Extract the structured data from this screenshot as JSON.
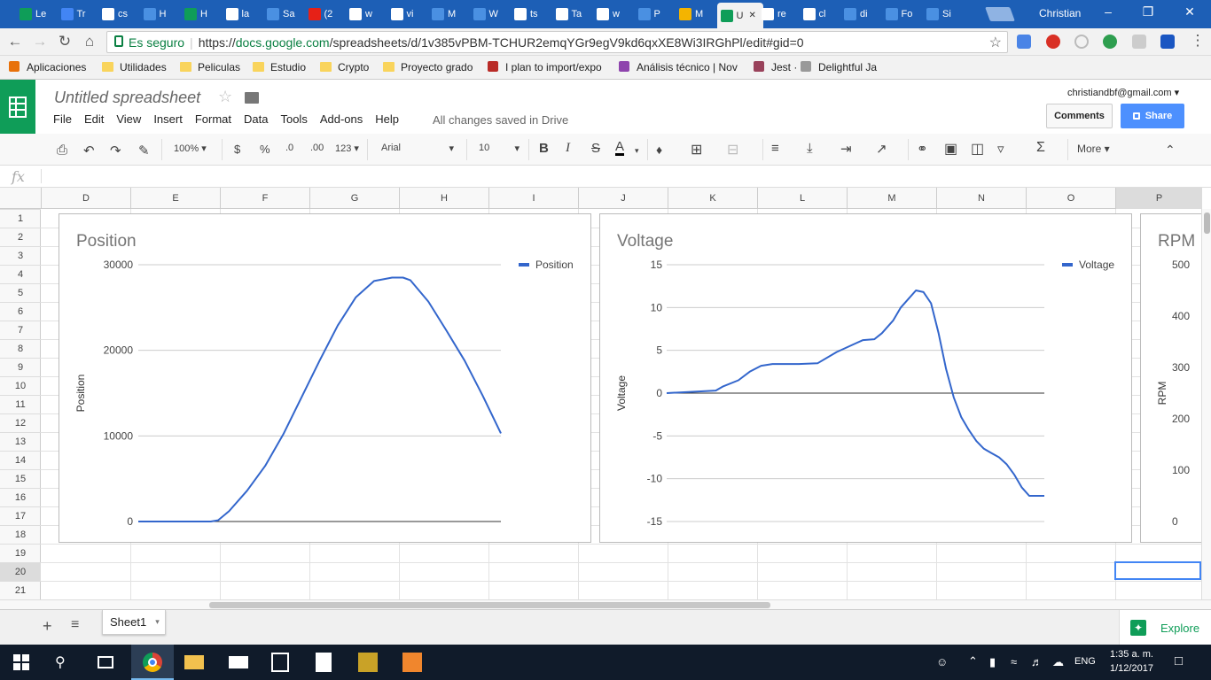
{
  "browser": {
    "tabs": [
      {
        "label": "Le",
        "icon": "sheets-icon"
      },
      {
        "label": "Tr",
        "icon": "docs-icon"
      },
      {
        "label": "cs",
        "icon": "google-icon"
      },
      {
        "label": "H",
        "icon": "bird-icon"
      },
      {
        "label": "H",
        "icon": "sheets-icon"
      },
      {
        "label": "la",
        "icon": "google-icon"
      },
      {
        "label": "Sa",
        "icon": "bird-icon"
      },
      {
        "label": "(2",
        "icon": "youtube-icon"
      },
      {
        "label": "w",
        "icon": "google-icon"
      },
      {
        "label": "vi",
        "icon": "google-icon"
      },
      {
        "label": "M",
        "icon": "bird-icon"
      },
      {
        "label": "W",
        "icon": "bird-icon"
      },
      {
        "label": "ts",
        "icon": "google-icon"
      },
      {
        "label": "Ta",
        "icon": "wikipedia-icon"
      },
      {
        "label": "w",
        "icon": "google-icon"
      },
      {
        "label": "P",
        "icon": "bird-icon"
      },
      {
        "label": "M",
        "icon": "drive-icon"
      },
      {
        "label": "U",
        "icon": "sheets-icon"
      },
      {
        "label": "re",
        "icon": "google-icon"
      },
      {
        "label": "cl",
        "icon": "google-icon"
      },
      {
        "label": "di",
        "icon": "bird-icon"
      },
      {
        "label": "Fo",
        "icon": "bird-icon"
      },
      {
        "label": "Si",
        "icon": "bird-icon"
      }
    ],
    "active_tab_index": 17,
    "user": "Christian",
    "secure_label": "Es seguro",
    "url_scheme": "https://",
    "url_host": "docs.google.com",
    "url_path": "/spreadsheets/d/1v385vPBM-TCHUR2emqYGr9egV9kd6qxXE8Wi3IRGhPl/edit#gid=0"
  },
  "bookmarks": [
    {
      "label": "Aplicaciones",
      "icon": "apps-grid-icon"
    },
    {
      "label": "Utilidades",
      "icon": "folder-icon"
    },
    {
      "label": "Peliculas",
      "icon": "folder-icon"
    },
    {
      "label": "Estudio",
      "icon": "folder-icon"
    },
    {
      "label": "Crypto",
      "icon": "folder-icon"
    },
    {
      "label": "Proyecto grado",
      "icon": "folder-icon"
    },
    {
      "label": "I plan to import/expo",
      "icon": "quora-icon"
    },
    {
      "label": "Análisis técnico | Nov",
      "icon": "circle-icon"
    },
    {
      "label": "Jest ·",
      "icon": "jest-icon"
    },
    {
      "label": "Delightful Ja",
      "icon": "page-icon"
    }
  ],
  "app": {
    "title": "Untitled spreadsheet",
    "menu": [
      "File",
      "Edit",
      "View",
      "Insert",
      "Format",
      "Data",
      "Tools",
      "Add-ons",
      "Help"
    ],
    "save_status": "All changes saved in Drive",
    "account": "christiandbf@gmail.com",
    "comments_label": "Comments",
    "share_label": "Share"
  },
  "toolbar": {
    "zoom": "100%",
    "currency": "$",
    "percent": "%",
    "dec_decrease": ".0",
    "dec_increase": ".00",
    "more_formats": "123",
    "font": "Arial",
    "font_size": "10",
    "bold": "B",
    "italic": "I",
    "strike": "S",
    "text_color": "A",
    "more": "More"
  },
  "formula_bar": {
    "label": "fx",
    "value": ""
  },
  "grid": {
    "columns": [
      "D",
      "E",
      "F",
      "G",
      "H",
      "I",
      "J",
      "K",
      "L",
      "M",
      "N",
      "O",
      "P"
    ],
    "rows": [
      "1",
      "2",
      "3",
      "4",
      "5",
      "6",
      "7",
      "8",
      "9",
      "10",
      "11",
      "12",
      "13",
      "14",
      "15",
      "16",
      "17",
      "18",
      "19",
      "20",
      "21"
    ],
    "selected_cell": "P20"
  },
  "chart_data": [
    {
      "type": "line",
      "title": "Position",
      "ylabel": "Position",
      "xlabel": "",
      "ylim": [
        0,
        30000
      ],
      "yticks": [
        "30000",
        "20000",
        "10000",
        "0"
      ],
      "legend": "top-right",
      "series": [
        {
          "name": "Position",
          "color": "#3366cc",
          "x": [
            0,
            5,
            10,
            15,
            20,
            22,
            25,
            30,
            35,
            40,
            45,
            50,
            55,
            60,
            65,
            70,
            73,
            75,
            80,
            85,
            90,
            95,
            100
          ],
          "y": [
            0,
            0,
            0,
            0,
            0,
            150,
            1200,
            3600,
            6500,
            10200,
            14500,
            18800,
            22900,
            26200,
            28100,
            28500,
            28500,
            28200,
            25700,
            22300,
            18800,
            14700,
            10300
          ]
        }
      ]
    },
    {
      "type": "line",
      "title": "Voltage",
      "ylabel": "Voltage",
      "xlabel": "",
      "ylim": [
        -15,
        15
      ],
      "yticks": [
        "15",
        "10",
        "5",
        "0",
        "-5",
        "-10",
        "-15"
      ],
      "legend": "top-right",
      "series": [
        {
          "name": "Voltage",
          "color": "#3366cc",
          "x": [
            0,
            13,
            15,
            19,
            22,
            25,
            28,
            31,
            35,
            40,
            45,
            50,
            52,
            55,
            57,
            60,
            62,
            64,
            66,
            68,
            70,
            72,
            74,
            76,
            78,
            80,
            82,
            84,
            86,
            88,
            90,
            92,
            94,
            96,
            98,
            100
          ],
          "y": [
            0,
            0.3,
            0.8,
            1.5,
            2.5,
            3.2,
            3.4,
            3.4,
            3.4,
            3.5,
            4.8,
            5.8,
            6.2,
            6.3,
            7.0,
            8.5,
            10.0,
            11.0,
            12.0,
            11.8,
            10.5,
            7.0,
            2.8,
            -0.5,
            -2.8,
            -4.3,
            -5.6,
            -6.5,
            -7.0,
            -7.5,
            -8.3,
            -9.5,
            -11.0,
            -12.0,
            -12.0,
            -12.0
          ]
        }
      ]
    },
    {
      "type": "line",
      "title": "RPM",
      "ylabel": "RPM",
      "xlabel": "",
      "yticks": [
        "500",
        "400",
        "300",
        "200",
        "100",
        "0"
      ],
      "legend": "top-right",
      "series": []
    }
  ],
  "sheets": {
    "tabs": [
      "Sheet1"
    ],
    "explore_label": "Explore"
  },
  "taskbar": {
    "time": "1:35 a. m.",
    "date": "1/12/2017",
    "language": "ENG"
  },
  "colors": {
    "sheets_green": "#0f9d58",
    "share_blue": "#4d90fe",
    "series_blue": "#3366cc",
    "chrome_blue": "#1d5fb6"
  }
}
